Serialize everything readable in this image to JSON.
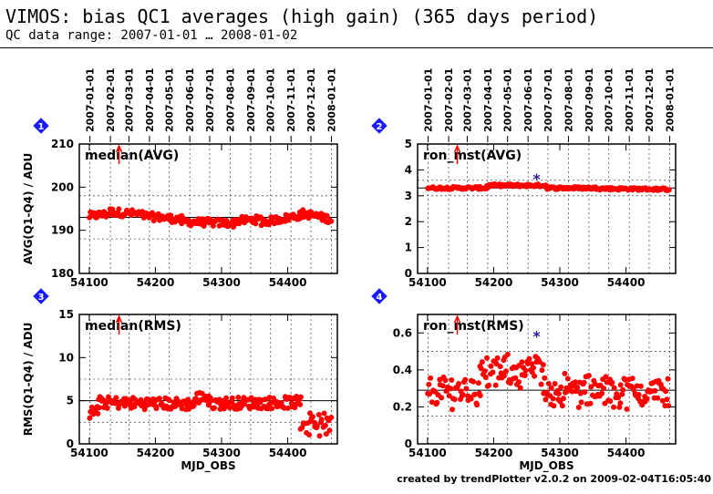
{
  "header": {
    "title": "VIMOS: bias QC1 averages (high gain) (365 days period)",
    "subtitle": "QC data range: 2007-01-01 … 2008-01-02"
  },
  "footer": {
    "credit": "created by trendPlotter v2.0.2 on 2009-02-04T16:05:40"
  },
  "colors": {
    "points": "#ff0000",
    "outlier": "#2a1a99",
    "badge": "#1a1aff",
    "arrow": "#ff0000"
  },
  "date_ticks": [
    "2007-01-01",
    "2007-02-01",
    "2007-03-01",
    "2007-04-01",
    "2007-05-01",
    "2007-06-01",
    "2007-07-01",
    "2007-08-01",
    "2007-09-01",
    "2007-10-01",
    "2007-11-01",
    "2007-12-01",
    "2008-01-01"
  ],
  "chart_data": [
    {
      "id": "1",
      "type": "scatter",
      "label": "median(AVG)",
      "ylabel": "AVG(Q1-Q4) / ADU",
      "xlabel": "",
      "xlim": [
        54085,
        54475
      ],
      "ylim": [
        180,
        210
      ],
      "yticks": [
        180,
        190,
        200,
        210
      ],
      "xticks": [
        54100,
        54200,
        54300,
        54400
      ],
      "reference_line": 193.0,
      "dotted_lines": [
        188,
        198
      ],
      "arrow_x": 54145,
      "outliers": [],
      "segments": [
        {
          "x": [
            54100,
            54130
          ],
          "y": [
            193.3,
            193.8
          ]
        },
        {
          "x": [
            54130,
            54180
          ],
          "y": [
            194.3,
            193.7
          ]
        },
        {
          "x": [
            54180,
            54240
          ],
          "y": [
            193.4,
            192.5
          ]
        },
        {
          "x": [
            54240,
            54320
          ],
          "y": [
            192.0,
            191.6
          ]
        },
        {
          "x": [
            54320,
            54360
          ],
          "y": [
            192.2,
            192.5
          ]
        },
        {
          "x": [
            54360,
            54420
          ],
          "y": [
            191.8,
            193.5
          ]
        },
        {
          "x": [
            54420,
            54465
          ],
          "y": [
            194.0,
            192.6
          ]
        }
      ],
      "spread": 0.9
    },
    {
      "id": "2",
      "type": "scatter",
      "label": "ron_mst(AVG)",
      "ylabel": "",
      "xlabel": "",
      "xlim": [
        54085,
        54475
      ],
      "ylim": [
        0,
        5
      ],
      "yticks": [
        0,
        1,
        2,
        3,
        4,
        5
      ],
      "xticks": [
        54100,
        54200,
        54300,
        54400
      ],
      "reference_line": 3.3,
      "dotted_lines": [
        3.0,
        3.6
      ],
      "arrow_x": 54145,
      "outliers": [
        {
          "x": 54265,
          "y": 3.7
        }
      ],
      "segments": [
        {
          "x": [
            54100,
            54190
          ],
          "y": [
            3.3,
            3.3
          ]
        },
        {
          "x": [
            54190,
            54280
          ],
          "y": [
            3.4,
            3.4
          ]
        },
        {
          "x": [
            54280,
            54360
          ],
          "y": [
            3.3,
            3.3
          ]
        },
        {
          "x": [
            54360,
            54465
          ],
          "y": [
            3.28,
            3.25
          ]
        }
      ],
      "spread": 0.05
    },
    {
      "id": "3",
      "type": "scatter",
      "label": "median(RMS)",
      "ylabel": "RMS(Q1-Q4) / ADU",
      "xlabel": "MJD_OBS",
      "xlim": [
        54085,
        54475
      ],
      "ylim": [
        0,
        15
      ],
      "yticks": [
        0,
        5,
        10,
        15
      ],
      "xticks": [
        54100,
        54200,
        54300,
        54400
      ],
      "reference_line": 5.0,
      "dotted_lines": [
        2.5,
        7.5
      ],
      "arrow_x": 54145,
      "outliers": [],
      "segments": [
        {
          "x": [
            54100,
            54115
          ],
          "y": [
            3.5,
            4.0
          ]
        },
        {
          "x": [
            54115,
            54260
          ],
          "y": [
            4.8,
            4.6
          ]
        },
        {
          "x": [
            54260,
            54280
          ],
          "y": [
            5.3,
            5.5
          ]
        },
        {
          "x": [
            54280,
            54420
          ],
          "y": [
            4.7,
            4.8
          ]
        },
        {
          "x": [
            54420,
            54465
          ],
          "y": [
            2.5,
            2.0
          ]
        }
      ],
      "spread": 0.7
    },
    {
      "id": "4",
      "type": "scatter",
      "label": "ron_mst(RMS)",
      "ylabel": "",
      "xlabel": "MJD_OBS",
      "xlim": [
        54085,
        54475
      ],
      "ylim": [
        0,
        0.7
      ],
      "yticks": [
        0,
        0.2,
        0.4,
        0.6
      ],
      "xticks": [
        54100,
        54200,
        54300,
        54400
      ],
      "reference_line": 0.29,
      "dotted_lines": [
        0.15,
        0.5
      ],
      "arrow_x": 54145,
      "outliers": [
        {
          "x": 54265,
          "y": 0.59
        }
      ],
      "segments": [
        {
          "x": [
            54100,
            54180
          ],
          "y": [
            0.28,
            0.3
          ]
        },
        {
          "x": [
            54180,
            54275
          ],
          "y": [
            0.38,
            0.4
          ]
        },
        {
          "x": [
            54275,
            54465
          ],
          "y": [
            0.29,
            0.28
          ]
        }
      ],
      "spread": 0.07
    }
  ]
}
